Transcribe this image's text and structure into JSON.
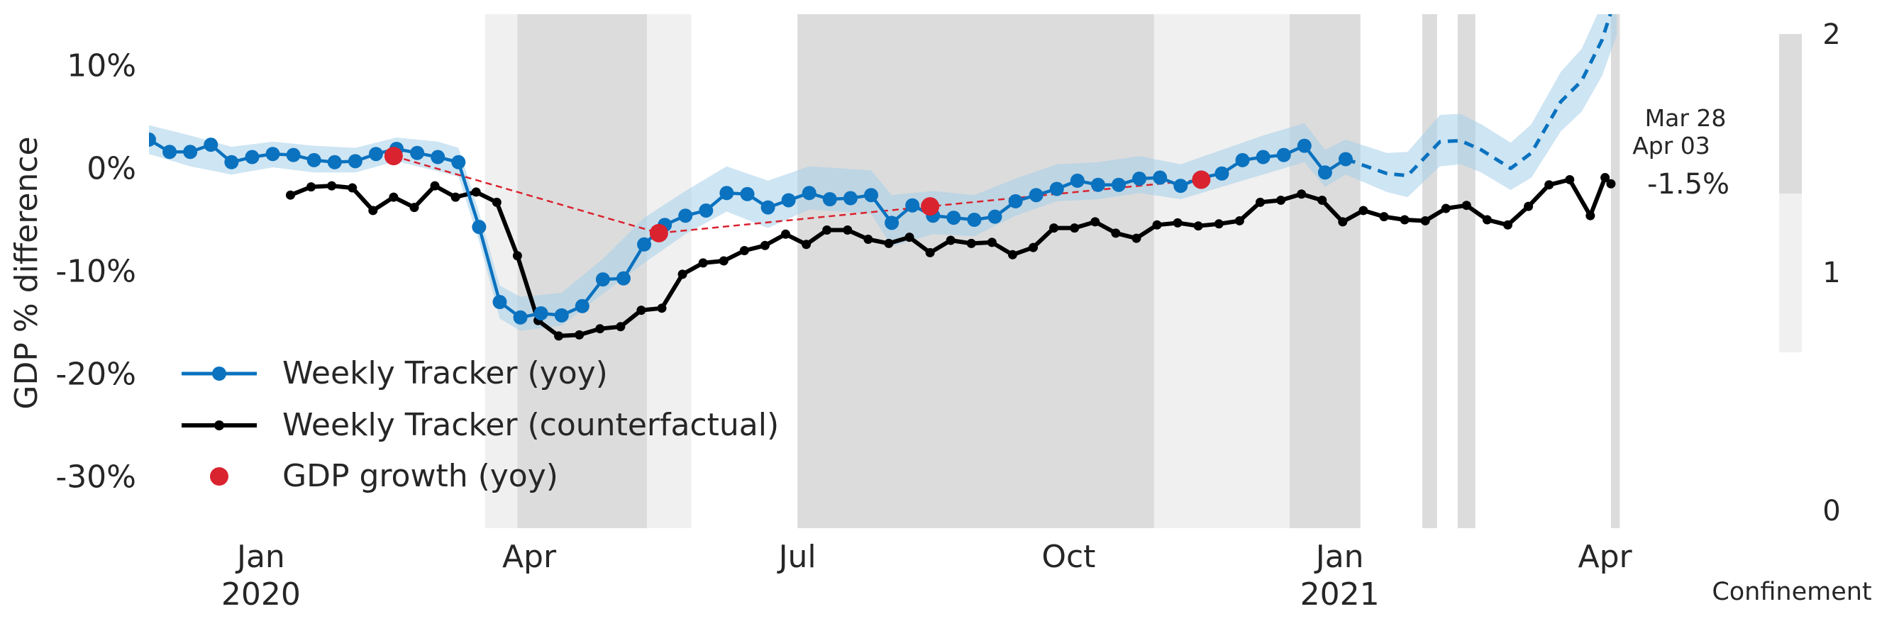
{
  "chart_data": {
    "type": "line",
    "ylabel": "GDP % difference",
    "ylim": [
      -35,
      15
    ],
    "yticks": [
      {
        "value": 10,
        "label": "10%"
      },
      {
        "value": 0,
        "label": "0%"
      },
      {
        "value": -10,
        "label": "-10%"
      },
      {
        "value": -20,
        "label": "-20%"
      },
      {
        "value": -30,
        "label": "-30%"
      }
    ],
    "xlim": [
      "2019-11-24",
      "2021-04-10"
    ],
    "xticks": [
      {
        "date": "2020-01-01",
        "label": "Jan",
        "sublabel": "2020"
      },
      {
        "date": "2020-04-01",
        "label": "Apr",
        "sublabel": ""
      },
      {
        "date": "2020-07-01",
        "label": "Jul",
        "sublabel": ""
      },
      {
        "date": "2020-10-01",
        "label": "Oct",
        "sublabel": ""
      },
      {
        "date": "2021-01-01",
        "label": "Jan",
        "sublabel": "2021"
      },
      {
        "date": "2021-04-01",
        "label": "Apr",
        "sublabel": ""
      }
    ],
    "grid": false,
    "legend_position": "bottom-left",
    "colors": {
      "yoy": "#0a72bf",
      "band": "#a6cfea",
      "counterfactual": "#000000",
      "gdp": "#d9232f",
      "confinement_light": "#f0f0f0",
      "confinement_dark": "#dcdcdc"
    },
    "series": [
      {
        "name": "Weekly Tracker (yoy)",
        "style": "line-markers",
        "points": [
          [
            "2019-11-24",
            2.8
          ],
          [
            "2019-12-01",
            1.6
          ],
          [
            "2019-12-08",
            1.6
          ],
          [
            "2019-12-15",
            2.3
          ],
          [
            "2019-12-22",
            0.6
          ],
          [
            "2019-12-29",
            1.1
          ],
          [
            "2020-01-05",
            1.4
          ],
          [
            "2020-01-12",
            1.3
          ],
          [
            "2020-01-19",
            0.8
          ],
          [
            "2020-01-26",
            0.6
          ],
          [
            "2020-02-02",
            0.7
          ],
          [
            "2020-02-09",
            1.4
          ],
          [
            "2020-02-16",
            1.9
          ],
          [
            "2020-02-23",
            1.5
          ],
          [
            "2020-03-01",
            1.1
          ],
          [
            "2020-03-08",
            0.6
          ],
          [
            "2020-03-15",
            -5.7
          ],
          [
            "2020-03-22",
            -13
          ],
          [
            "2020-03-29",
            -14.5
          ],
          [
            "2020-04-05",
            -14.1
          ],
          [
            "2020-04-12",
            -14.3
          ],
          [
            "2020-04-19",
            -13.4
          ],
          [
            "2020-04-26",
            -10.8
          ],
          [
            "2020-05-03",
            -10.7
          ],
          [
            "2020-05-10",
            -7.4
          ],
          [
            "2020-05-17",
            -5.5
          ],
          [
            "2020-05-24",
            -4.6
          ],
          [
            "2020-05-31",
            -4.1
          ],
          [
            "2020-06-07",
            -2.4
          ],
          [
            "2020-06-14",
            -2.5
          ],
          [
            "2020-06-21",
            -3.8
          ],
          [
            "2020-06-28",
            -3.1
          ],
          [
            "2020-07-05",
            -2.4
          ],
          [
            "2020-07-12",
            -3
          ],
          [
            "2020-07-19",
            -2.9
          ],
          [
            "2020-07-26",
            -2.6
          ],
          [
            "2020-08-02",
            -5.3
          ],
          [
            "2020-08-09",
            -3.6
          ],
          [
            "2020-08-16",
            -4.6
          ],
          [
            "2020-08-23",
            -4.8
          ],
          [
            "2020-08-30",
            -5
          ],
          [
            "2020-09-06",
            -4.7
          ],
          [
            "2020-09-13",
            -3.2
          ],
          [
            "2020-09-20",
            -2.6
          ],
          [
            "2020-09-27",
            -2
          ],
          [
            "2020-10-04",
            -1.2
          ],
          [
            "2020-10-11",
            -1.6
          ],
          [
            "2020-10-18",
            -1.6
          ],
          [
            "2020-10-25",
            -1
          ],
          [
            "2020-11-01",
            -0.9
          ],
          [
            "2020-11-08",
            -1.7
          ],
          [
            "2020-11-15",
            -0.9
          ],
          [
            "2020-11-22",
            -0.5
          ],
          [
            "2020-11-29",
            0.8
          ],
          [
            "2020-12-06",
            1.1
          ],
          [
            "2020-12-13",
            1.3
          ],
          [
            "2020-12-20",
            2.2
          ],
          [
            "2020-12-27",
            -0.4
          ],
          [
            "2021-01-03",
            0.9
          ]
        ]
      },
      {
        "name": "",
        "style": "dashed",
        "points": [
          [
            "2021-01-03",
            0.9
          ],
          [
            "2021-01-17",
            -0.5
          ],
          [
            "2021-01-24",
            -0.7
          ],
          [
            "2021-02-04",
            2.6
          ],
          [
            "2021-02-11",
            2.7
          ],
          [
            "2021-02-18",
            1.8
          ],
          [
            "2021-02-28",
            0
          ],
          [
            "2021-03-07",
            1.5
          ],
          [
            "2021-03-17",
            6.5
          ],
          [
            "2021-03-24",
            8.5
          ],
          [
            "2021-03-31",
            12.5
          ],
          [
            "2021-04-05",
            17
          ]
        ]
      },
      {
        "name": "Weekly Tracker (counterfactual)",
        "style": "line-small-markers",
        "points": [
          [
            "2020-01-11",
            -2.6
          ],
          [
            "2020-01-18",
            -1.8
          ],
          [
            "2020-01-25",
            -1.7
          ],
          [
            "2020-02-01",
            -1.9
          ],
          [
            "2020-02-08",
            -4.1
          ],
          [
            "2020-02-15",
            -2.8
          ],
          [
            "2020-02-22",
            -3.8
          ],
          [
            "2020-02-29",
            -1.7
          ],
          [
            "2020-03-07",
            -2.8
          ],
          [
            "2020-03-14",
            -2.3
          ],
          [
            "2020-03-21",
            -3.3
          ],
          [
            "2020-03-28",
            -8.5
          ],
          [
            "2020-04-04",
            -14.8
          ],
          [
            "2020-04-11",
            -16.3
          ],
          [
            "2020-04-18",
            -16.2
          ],
          [
            "2020-04-25",
            -15.6
          ],
          [
            "2020-05-02",
            -15.4
          ],
          [
            "2020-05-09",
            -13.8
          ],
          [
            "2020-05-16",
            -13.6
          ],
          [
            "2020-05-23",
            -10.3
          ],
          [
            "2020-05-30",
            -9.2
          ],
          [
            "2020-06-06",
            -9
          ],
          [
            "2020-06-13",
            -8
          ],
          [
            "2020-06-20",
            -7.5
          ],
          [
            "2020-06-27",
            -6.4
          ],
          [
            "2020-07-04",
            -7.4
          ],
          [
            "2020-07-11",
            -6
          ],
          [
            "2020-07-18",
            -6
          ],
          [
            "2020-07-25",
            -6.9
          ],
          [
            "2020-08-01",
            -7.3
          ],
          [
            "2020-08-08",
            -6.7
          ],
          [
            "2020-08-15",
            -8.2
          ],
          [
            "2020-08-22",
            -7
          ],
          [
            "2020-08-29",
            -7.3
          ],
          [
            "2020-09-05",
            -7.2
          ],
          [
            "2020-09-12",
            -8.4
          ],
          [
            "2020-09-19",
            -7.7
          ],
          [
            "2020-09-26",
            -5.8
          ],
          [
            "2020-10-03",
            -5.8
          ],
          [
            "2020-10-10",
            -5.2
          ],
          [
            "2020-10-17",
            -6.3
          ],
          [
            "2020-10-24",
            -6.8
          ],
          [
            "2020-10-31",
            -5.5
          ],
          [
            "2020-11-07",
            -5.3
          ],
          [
            "2020-11-14",
            -5.6
          ],
          [
            "2020-11-21",
            -5.4
          ],
          [
            "2020-11-28",
            -5.1
          ],
          [
            "2020-12-05",
            -3.3
          ],
          [
            "2020-12-12",
            -3.1
          ],
          [
            "2020-12-19",
            -2.5
          ],
          [
            "2020-12-26",
            -3.1
          ],
          [
            "2021-01-02",
            -5.2
          ],
          [
            "2021-01-09",
            -4.1
          ],
          [
            "2021-01-16",
            -4.7
          ],
          [
            "2021-01-23",
            -5
          ],
          [
            "2021-01-30",
            -5.1
          ],
          [
            "2021-02-06",
            -3.9
          ],
          [
            "2021-02-13",
            -3.6
          ],
          [
            "2021-02-20",
            -5
          ],
          [
            "2021-02-27",
            -5.5
          ],
          [
            "2021-03-06",
            -3.7
          ],
          [
            "2021-03-13",
            -1.6
          ],
          [
            "2021-03-20",
            -1.1
          ],
          [
            "2021-03-27",
            -4.6
          ],
          [
            "2021-04-01",
            -0.9
          ],
          [
            "2021-04-03",
            -1.5
          ]
        ]
      },
      {
        "name": "GDP growth (yoy)",
        "style": "markers",
        "points": [
          [
            "2020-02-15",
            1.2
          ],
          [
            "2020-05-15",
            -6.3
          ],
          [
            "2020-08-15",
            -3.7
          ],
          [
            "2020-11-15",
            -1.1
          ]
        ]
      }
    ],
    "yoy_band": [
      [
        "2019-11-24",
        4.2,
        1.4
      ],
      [
        "2019-12-08",
        3.2,
        0.2
      ],
      [
        "2019-12-22",
        2.1,
        -0.6
      ],
      [
        "2020-01-05",
        2.6,
        0.1
      ],
      [
        "2020-01-19",
        2.2,
        -0.4
      ],
      [
        "2020-02-02",
        2,
        -0.4
      ],
      [
        "2020-02-16",
        3,
        0.7
      ],
      [
        "2020-03-01",
        2.6,
        -0.3
      ],
      [
        "2020-03-08",
        2,
        -0.8
      ],
      [
        "2020-03-15",
        -4.3,
        -7.1
      ],
      [
        "2020-03-22",
        -11.4,
        -14.6
      ],
      [
        "2020-03-29",
        -12.5,
        -15.8
      ],
      [
        "2020-04-12",
        -12.1,
        -15.3
      ],
      [
        "2020-04-26",
        -8.8,
        -12.2
      ],
      [
        "2020-05-10",
        -4.8,
        -9.2
      ],
      [
        "2020-05-24",
        -2.2,
        -6.4
      ],
      [
        "2020-06-07",
        0.2,
        -4.2
      ],
      [
        "2020-06-21",
        -1.2,
        -5.8
      ],
      [
        "2020-07-05",
        0.2,
        -4
      ],
      [
        "2020-07-26",
        -0.2,
        -4.4
      ],
      [
        "2020-08-02",
        -2.6,
        -7.6
      ],
      [
        "2020-08-16",
        -2.2,
        -6.4
      ],
      [
        "2020-08-30",
        -2.6,
        -6.6
      ],
      [
        "2020-09-13",
        -1,
        -4.6
      ],
      [
        "2020-09-27",
        0.4,
        -3.2
      ],
      [
        "2020-10-11",
        0.6,
        -3
      ],
      [
        "2020-10-25",
        1.2,
        -2.4
      ],
      [
        "2020-11-08",
        0.4,
        -3
      ],
      [
        "2020-11-22",
        1.8,
        -1.8
      ],
      [
        "2020-12-06",
        3.2,
        -0.6
      ],
      [
        "2020-12-20",
        4.4,
        0.6
      ],
      [
        "2020-12-27",
        1.8,
        -1.8
      ],
      [
        "2021-01-03",
        2.8,
        -0.6
      ],
      [
        "2021-01-17",
        1.5,
        -2.3
      ],
      [
        "2021-01-24",
        1.6,
        -2.8
      ],
      [
        "2021-02-04",
        5.2,
        0.2
      ],
      [
        "2021-02-11",
        5.3,
        0.4
      ],
      [
        "2021-02-18",
        4.3,
        -0.4
      ],
      [
        "2021-02-28",
        2.5,
        -2.1
      ],
      [
        "2021-03-07",
        4.3,
        -0.9
      ],
      [
        "2021-03-17",
        9.4,
        3.6
      ],
      [
        "2021-03-24",
        11.6,
        5.5
      ],
      [
        "2021-03-31",
        16,
        9
      ],
      [
        "2021-04-05",
        21,
        13
      ]
    ],
    "gdp_connector_style": "dashed",
    "confinement_periods": [
      {
        "start": "2020-03-17",
        "end": "2020-03-28",
        "level": 1
      },
      {
        "start": "2020-03-28",
        "end": "2020-05-11",
        "level": 2
      },
      {
        "start": "2020-05-11",
        "end": "2020-05-26",
        "level": 1
      },
      {
        "start": "2020-07-01",
        "end": "2020-10-30",
        "level": 2
      },
      {
        "start": "2020-10-30",
        "end": "2020-12-15",
        "level": 1
      },
      {
        "start": "2020-12-15",
        "end": "2021-01-08",
        "level": 2
      },
      {
        "start": "2021-01-29",
        "end": "2021-02-03",
        "level": 2
      },
      {
        "start": "2021-02-10",
        "end": "2021-02-16",
        "level": 2
      },
      {
        "start": "2021-04-03",
        "end": "2021-04-06",
        "level": 2
      }
    ],
    "annotations": {
      "date_top": "Mar 28",
      "date_bottom": "Apr 03",
      "last_value": "-1.5%"
    },
    "colorbar": {
      "label": "Confinement",
      "ticks": [
        {
          "value": 2,
          "label": "2"
        },
        {
          "value": 1,
          "label": "1"
        },
        {
          "value": 0,
          "label": "0"
        }
      ]
    }
  }
}
